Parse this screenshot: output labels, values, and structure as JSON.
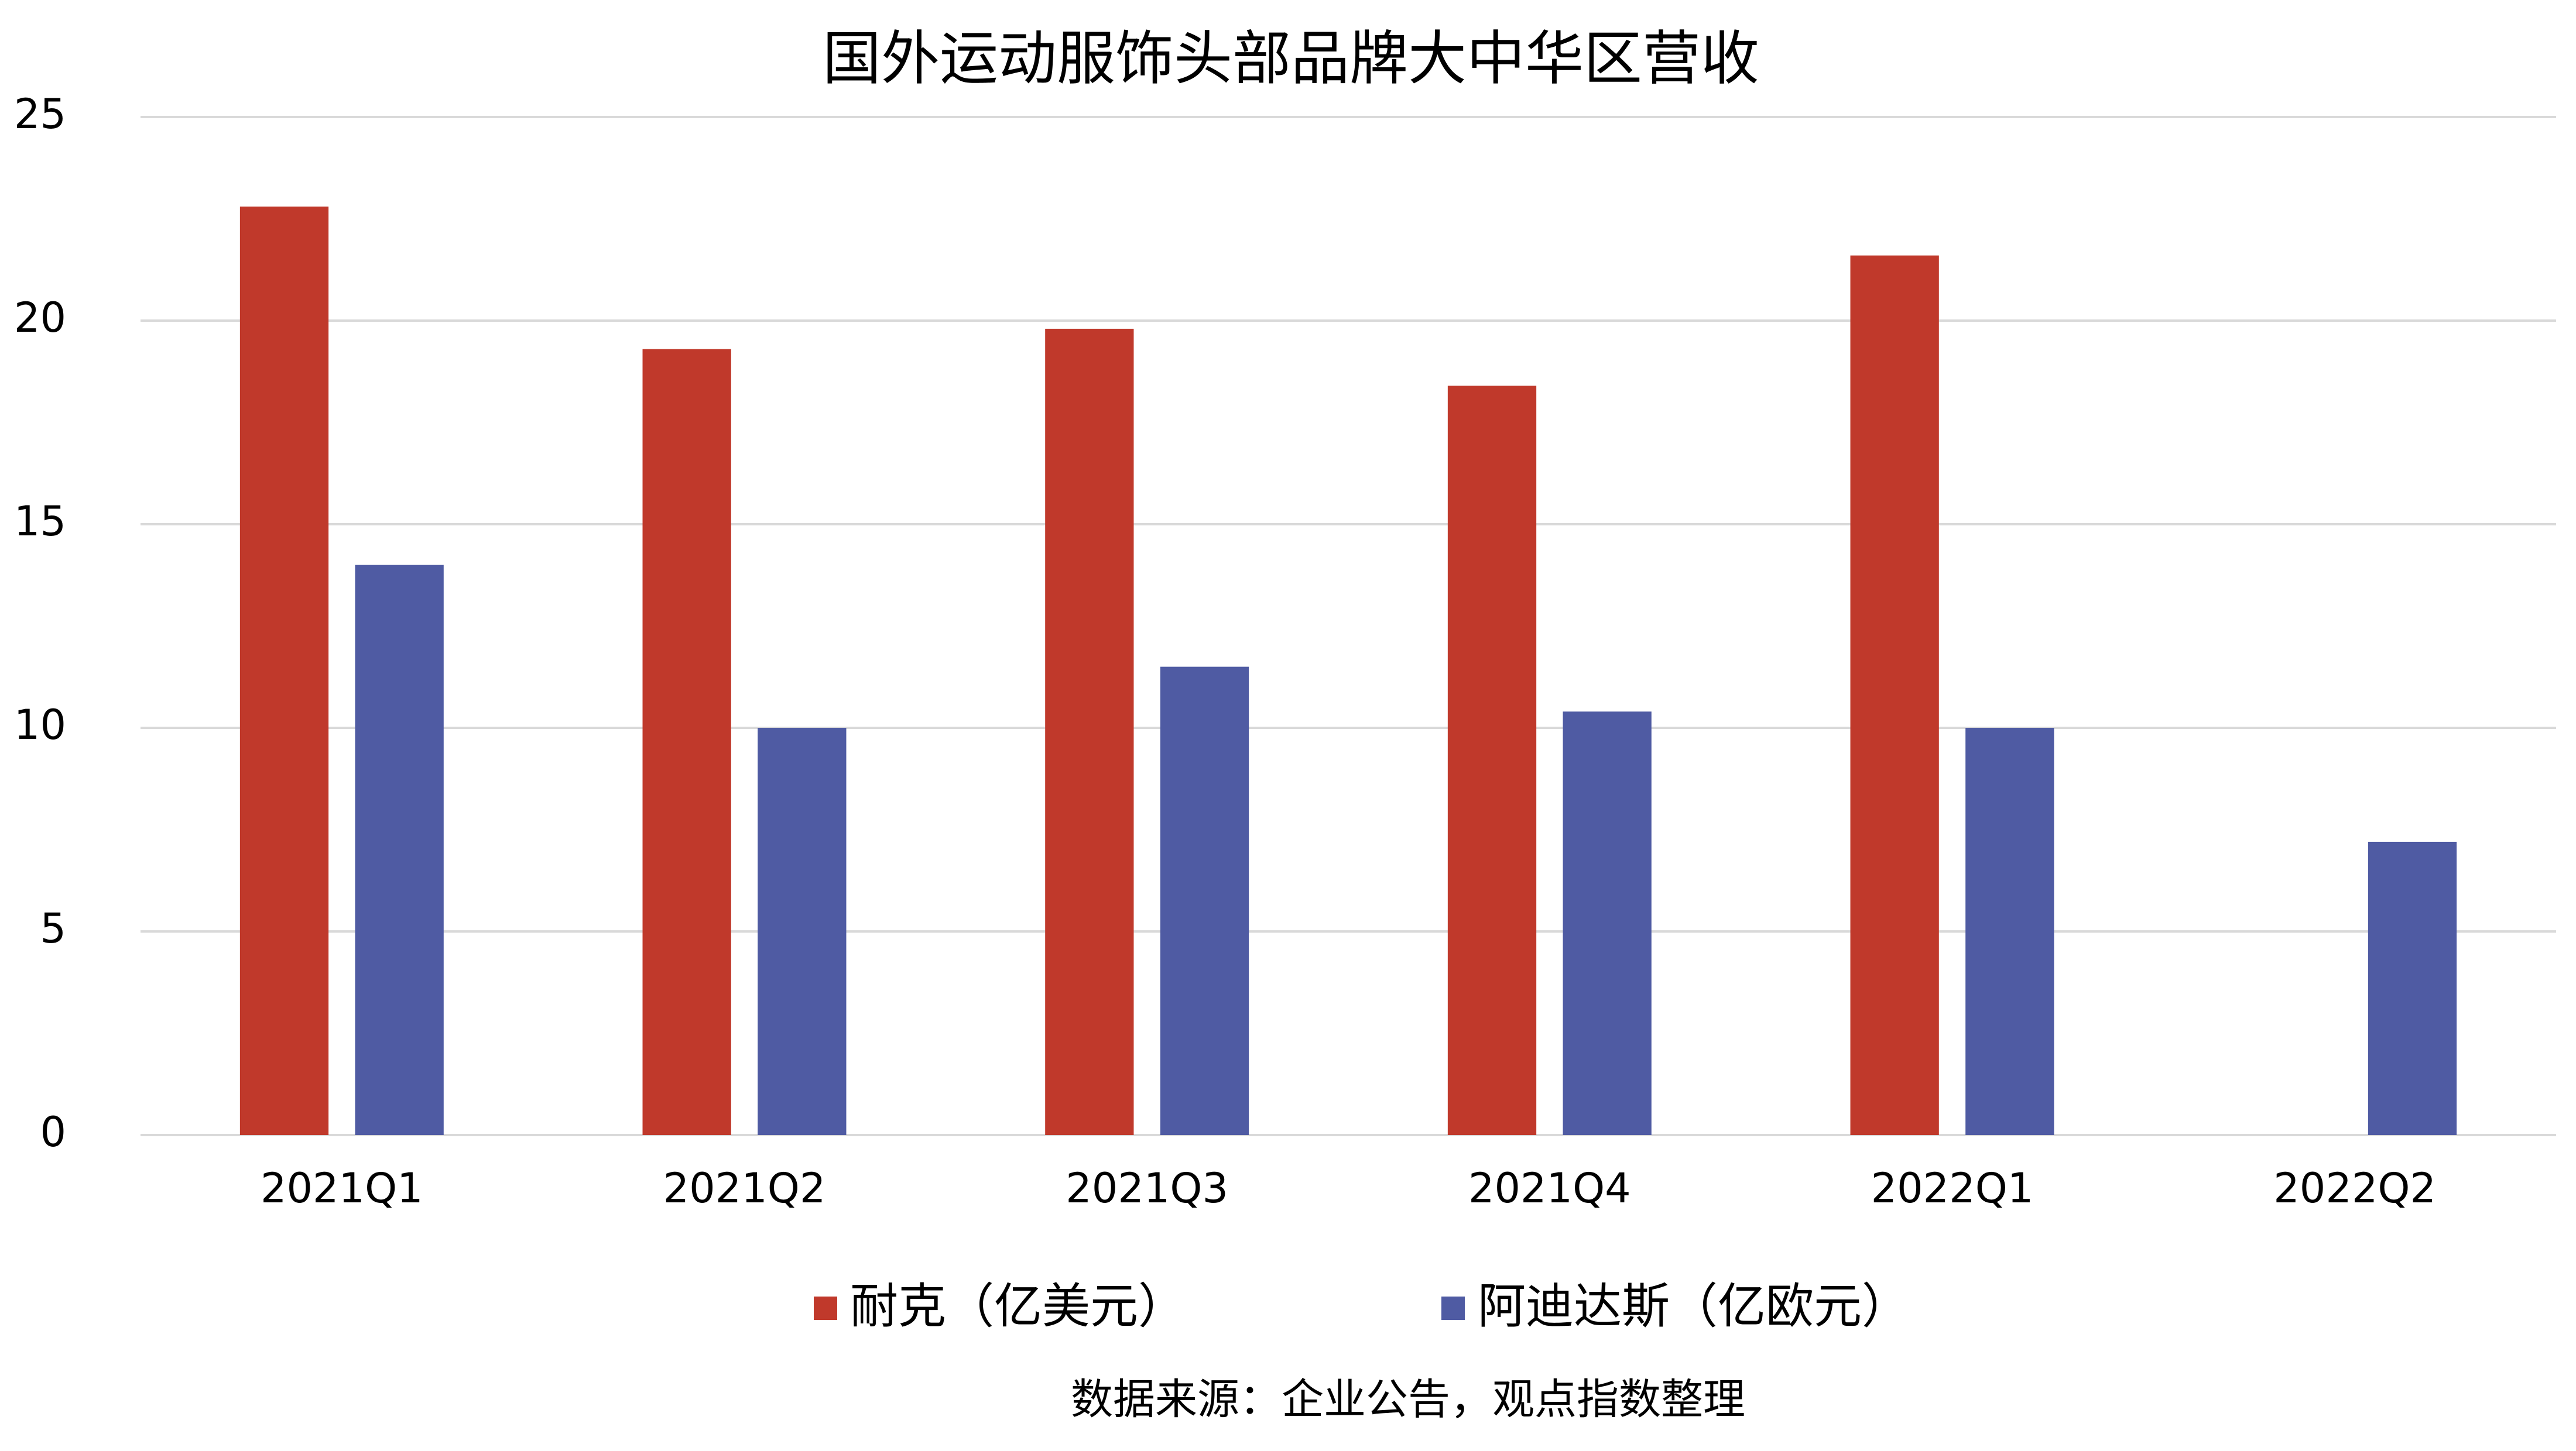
{
  "chart_data": {
    "type": "bar",
    "title": "国外运动服饰头部品牌大中华区营收",
    "categories": [
      "2021Q1",
      "2021Q2",
      "2021Q3",
      "2021Q4",
      "2022Q1",
      "2022Q2"
    ],
    "series": [
      {
        "name": "耐克（亿美元）",
        "color": "#c0392b",
        "values": [
          22.8,
          19.3,
          19.8,
          18.4,
          21.6,
          null
        ]
      },
      {
        "name": "阿迪达斯（亿欧元）",
        "color": "#4f5ba3",
        "values": [
          14.0,
          10.0,
          11.5,
          10.4,
          10.0,
          7.2
        ]
      }
    ],
    "ylim": [
      0,
      25
    ],
    "yticks": [
      0,
      5,
      10,
      15,
      20,
      25
    ],
    "grid": true,
    "legend": "bottom",
    "source": "数据来源：企业公告，观点指数整理"
  }
}
